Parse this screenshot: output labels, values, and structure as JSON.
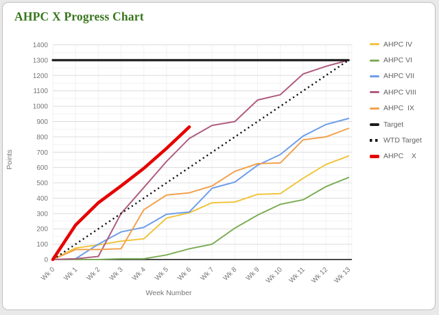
{
  "window": {
    "background": "#e9e9e9",
    "card_background": "#ffffff",
    "card_border_color": "#bfbfbf"
  },
  "chart_data": {
    "type": "line",
    "title": "AHPC X Progress Chart",
    "title_color": "#38761d",
    "xlabel": "Week Number",
    "ylabel": "Points",
    "axis_text_color": "#757575",
    "grid": true,
    "legend_position": "right",
    "ylim": [
      0,
      1400
    ],
    "y_tick_step": 100,
    "x_categories": [
      "Wk 0",
      "Wk 1",
      "Wk 2",
      "Wk 3",
      "Wk 4",
      "Wk 5",
      "Wk 6",
      "Wk 7",
      "Wk 8",
      "Wk 9",
      "Wk 10",
      "Wk 11",
      "Wk 12",
      "Wk 13"
    ],
    "series": [
      {
        "name": "AHPC IV",
        "legend_label": "AHPC IV",
        "color": "#f1c43c",
        "width": 2,
        "dotted": false,
        "values": [
          0,
          75,
          95,
          120,
          135,
          270,
          305,
          370,
          375,
          425,
          430,
          530,
          620,
          675
        ]
      },
      {
        "name": "AHPC VI",
        "legend_label": "AHPC VI",
        "color": "#7dad56",
        "width": 2,
        "dotted": false,
        "values": [
          0,
          0,
          0,
          5,
          5,
          30,
          70,
          100,
          205,
          290,
          360,
          390,
          475,
          535
        ]
      },
      {
        "name": "AHPC VII",
        "legend_label": "AHPC VII",
        "color": "#6d9eeb",
        "width": 2,
        "dotted": false,
        "values": [
          0,
          5,
          100,
          180,
          210,
          295,
          310,
          465,
          505,
          615,
          685,
          805,
          880,
          920
        ]
      },
      {
        "name": "AHPC VIII",
        "legend_label": "AHPC VIII",
        "color": "#b05c80",
        "width": 2,
        "dotted": false,
        "values": [
          0,
          5,
          20,
          300,
          470,
          640,
          790,
          875,
          900,
          1040,
          1075,
          1210,
          1260,
          1300
        ]
      },
      {
        "name": "AHPC IX",
        "legend_label": "AHPC  IX",
        "color": "#f2a14d",
        "width": 2,
        "dotted": false,
        "values": [
          0,
          65,
          65,
          70,
          325,
          420,
          435,
          480,
          575,
          625,
          630,
          780,
          800,
          855
        ]
      },
      {
        "name": "Target",
        "legend_label": "Target",
        "color": "#1c1c1c",
        "width": 3.2,
        "dotted": false,
        "values": [
          1300,
          1300,
          1300,
          1300,
          1300,
          1300,
          1300,
          1300,
          1300,
          1300,
          1300,
          1300,
          1300,
          1300
        ]
      },
      {
        "name": "WTD Target",
        "legend_label": "WTD Target",
        "color": "#111111",
        "width": 2.4,
        "dotted": true,
        "values": [
          0,
          100,
          200,
          300,
          400,
          500,
          600,
          700,
          800,
          900,
          1000,
          1100,
          1200,
          1300
        ]
      },
      {
        "name": "AHPC X",
        "legend_label": "AHPC    X",
        "color": "#e60000",
        "width": 4.6,
        "dotted": false,
        "values": [
          0,
          225,
          370,
          480,
          595,
          725,
          865
        ]
      }
    ]
  }
}
